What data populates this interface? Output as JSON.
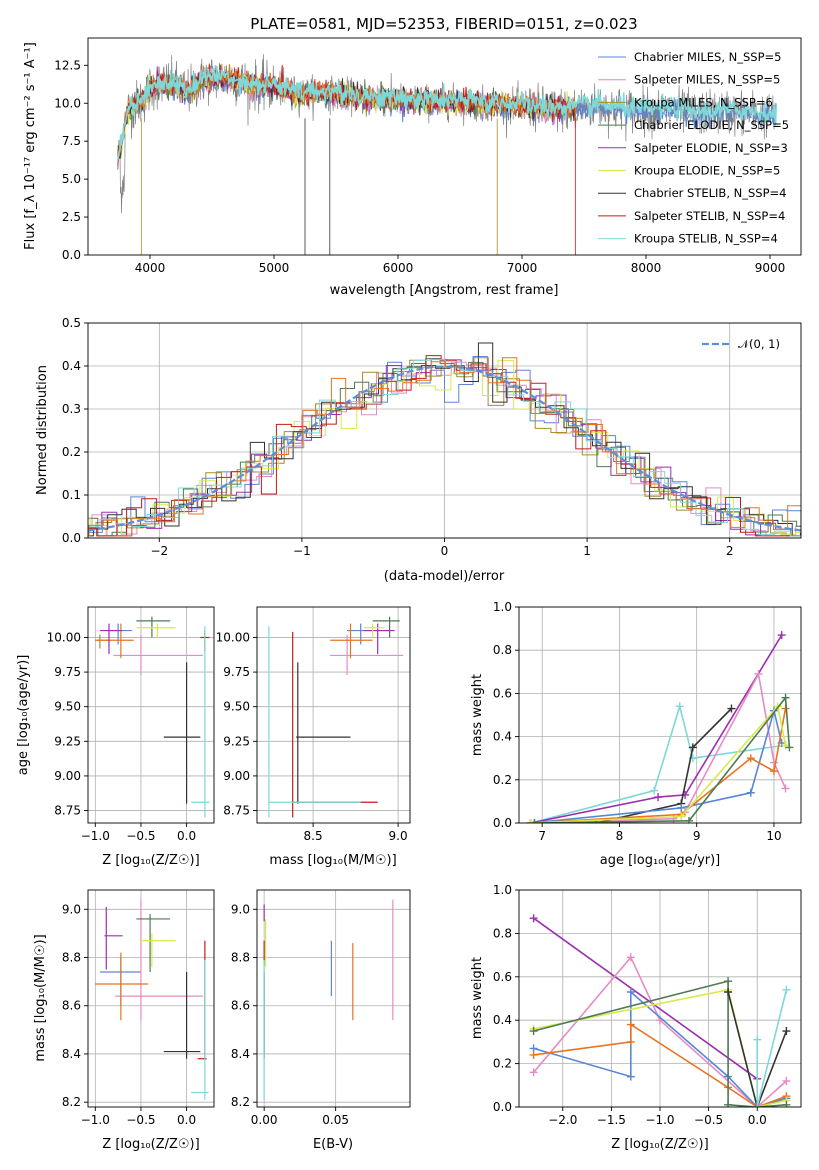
{
  "colors": {
    "chabrier_miles": "#5a86d6",
    "salpeter_miles": "#e88ac3",
    "kroupa_miles": "#a88b2a",
    "chabrier_elodie": "#4e7a52",
    "salpeter_elodie": "#9b2fb0",
    "kroupa_elodie": "#d8ea4b",
    "chabrier_stelib": "#333333",
    "salpeter_stelib": "#c81a1a",
    "kroupa_stelib": "#7fd8d8",
    "orange": "#e87422",
    "gauss": "#5b8fd9"
  },
  "chart_data": [
    {
      "id": "spectrum",
      "type": "line",
      "title": "PLATE=0581, MJD=52353, FIBERID=0151, z=0.023",
      "xlabel": "wavelength [Angstrom, rest frame]",
      "ylabel": "Flux [f_λ 10⁻¹⁷ erg cm⁻² s⁻¹ A⁻¹]",
      "xlim": [
        3500,
        9250
      ],
      "ylim": [
        0,
        14.3
      ],
      "xticks": [
        "4000",
        "5000",
        "6000",
        "7000",
        "8000",
        "9000"
      ],
      "yticks": [
        "0.0",
        "2.5",
        "5.0",
        "7.5",
        "10.0",
        "12.5"
      ],
      "legend_placement": "top-right",
      "legend": [
        "Chabrier MILES, N_SSP=5",
        "Salpeter MILES, N_SSP=5",
        "Kroupa MILES, N_SSP=6",
        "Chabrier ELODIE, N_SSP=5",
        "Salpeter ELODIE, N_SSP=3",
        "Kroupa ELODIE, N_SSP=5",
        "Chabrier STELIB, N_SSP=4",
        "Salpeter STELIB, N_SSP=4",
        "Kroupa STELIB, N_SSP=4"
      ],
      "model_shape": [
        [
          3750,
          6.5
        ],
        [
          3820,
          9.5
        ],
        [
          3900,
          10.0
        ],
        [
          3950,
          10.2
        ],
        [
          4000,
          11.0
        ],
        [
          4100,
          11.3
        ],
        [
          4200,
          11.2
        ],
        [
          4300,
          10.7
        ],
        [
          4400,
          11.4
        ],
        [
          4500,
          11.7
        ],
        [
          4600,
          11.6
        ],
        [
          4700,
          11.5
        ],
        [
          4800,
          11.2
        ],
        [
          4900,
          11.1
        ],
        [
          5000,
          11.1
        ],
        [
          5200,
          10.6
        ],
        [
          5400,
          10.7
        ],
        [
          5600,
          10.5
        ],
        [
          5800,
          10.3
        ],
        [
          6000,
          10.2
        ],
        [
          6200,
          10.1
        ],
        [
          6400,
          10.1
        ],
        [
          6600,
          10.0
        ],
        [
          6800,
          9.9
        ],
        [
          7000,
          9.8
        ],
        [
          7200,
          9.6
        ],
        [
          7400,
          9.6
        ],
        [
          7600,
          9.8
        ],
        [
          7800,
          9.6
        ],
        [
          8000,
          9.5
        ],
        [
          8200,
          9.6
        ],
        [
          8400,
          9.3
        ],
        [
          8600,
          9.4
        ],
        [
          8800,
          9.4
        ],
        [
          9000,
          9.2
        ]
      ],
      "grid": false
    },
    {
      "id": "residuals",
      "type": "line",
      "xlabel": "(data-model)/error",
      "ylabel": "Normed distribution",
      "xlim": [
        -2.5,
        2.5
      ],
      "ylim": [
        0,
        0.5
      ],
      "xticks": [
        "−2",
        "−1",
        "0",
        "1",
        "2"
      ],
      "yticks": [
        "0.0",
        "0.1",
        "0.2",
        "0.3",
        "0.4",
        "0.5"
      ],
      "legend": [
        "𝒩(0, 1)"
      ],
      "legend_placement": "top-right",
      "grid": true
    },
    {
      "id": "age_vs_Z",
      "type": "scatter",
      "xlabel": "Z [log₁₀(Z/Z☉)]",
      "ylabel": "age  [log₁₀(age/yr)]",
      "xlim": [
        -1.08,
        0.3
      ],
      "ylim": [
        8.66,
        10.22
      ],
      "xticks": [
        "−1.0",
        "−0.5",
        "0.0"
      ],
      "yticks": [
        "8.75",
        "9.00",
        "9.25",
        "9.50",
        "9.75",
        "10.00"
      ],
      "grid": true
    },
    {
      "id": "age_vs_mass",
      "type": "scatter",
      "xlabel": "mass [log₁₀(M/M☉)]",
      "ylabel": "",
      "xlim": [
        8.17,
        9.07
      ],
      "ylim": [
        8.66,
        10.22
      ],
      "xticks": [
        "8.5",
        "9.0"
      ],
      "yticks": [
        "8.75",
        "9.00",
        "9.25",
        "9.50",
        "9.75",
        "10.00"
      ],
      "grid": true
    },
    {
      "id": "weight_vs_age",
      "type": "line",
      "xlabel": "age  [log₁₀(age/yr)]",
      "ylabel": "mass weight",
      "xlim": [
        6.7,
        10.35
      ],
      "ylim": [
        0,
        1.0
      ],
      "xticks": [
        "7",
        "8",
        "9",
        "10"
      ],
      "yticks": [
        "0.0",
        "0.2",
        "0.4",
        "0.6",
        "0.8",
        "1.0"
      ],
      "grid": true,
      "series": [
        {
          "color": "kroupa_stelib",
          "x": [
            6.85,
            8.45,
            8.78,
            8.95,
            10.15
          ],
          "y": [
            0.0,
            0.15,
            0.54,
            0.3,
            0.36
          ]
        },
        {
          "color": "salpeter_elodie",
          "x": [
            6.85,
            8.5,
            8.85,
            10.1
          ],
          "y": [
            0.0,
            0.12,
            0.13,
            0.87
          ]
        },
        {
          "color": "salpeter_miles",
          "x": [
            6.9,
            8.7,
            8.85,
            9.8,
            10.0,
            10.15
          ],
          "y": [
            0.0,
            0.02,
            0.05,
            0.69,
            0.28,
            0.16
          ]
        },
        {
          "color": "chabrier_stelib",
          "x": [
            7.7,
            8.8,
            8.95,
            9.45
          ],
          "y": [
            0.0,
            0.09,
            0.35,
            0.53
          ]
        },
        {
          "color": "chabrier_miles",
          "x": [
            6.85,
            8.8,
            9.7,
            10.0,
            10.1
          ],
          "y": [
            0.0,
            0.07,
            0.14,
            0.52,
            0.37
          ]
        },
        {
          "color": "orange",
          "x": [
            6.85,
            8.8,
            9.7,
            10.0,
            10.15
          ],
          "y": [
            0.0,
            0.04,
            0.3,
            0.24,
            0.53
          ]
        },
        {
          "color": "kroupa_elodie",
          "x": [
            6.85,
            8.8,
            10.05,
            10.15
          ],
          "y": [
            0.0,
            0.03,
            0.54,
            0.36
          ]
        },
        {
          "color": "chabrier_elodie",
          "x": [
            6.9,
            8.9,
            10.15,
            10.2
          ],
          "y": [
            0.0,
            0.01,
            0.58,
            0.35
          ]
        }
      ]
    },
    {
      "id": "mass_vs_Z",
      "type": "scatter",
      "xlabel": "Z [log₁₀(Z/Z☉)]",
      "ylabel": "mass [log₁₀(M/M☉)]",
      "xlim": [
        -1.08,
        0.3
      ],
      "ylim": [
        8.18,
        9.08
      ],
      "xticks": [
        "−1.0",
        "−0.5",
        "0.0"
      ],
      "yticks": [
        "8.2",
        "8.4",
        "8.6",
        "8.8",
        "9.0"
      ],
      "grid": true
    },
    {
      "id": "mass_vs_EBV",
      "type": "scatter",
      "xlabel": "E(B-V)",
      "ylabel": "",
      "xlim": [
        -0.005,
        0.102
      ],
      "ylim": [
        8.18,
        9.08
      ],
      "xticks": [
        "0.00",
        "0.05"
      ],
      "yticks": [
        "8.2",
        "8.4",
        "8.6",
        "8.8",
        "9.0"
      ],
      "grid": true
    },
    {
      "id": "weight_vs_Z",
      "type": "line",
      "xlabel": "Z [log₁₀(Z/Z☉)]",
      "ylabel": "mass weight",
      "xlim": [
        -2.45,
        0.45
      ],
      "ylim": [
        0,
        1.0
      ],
      "xticks": [
        "−2.0",
        "−1.5",
        "−1.0",
        "−0.5",
        "0.0"
      ],
      "yticks": [
        "0.0",
        "0.2",
        "0.4",
        "0.6",
        "0.8",
        "1.0"
      ],
      "grid": true,
      "series": [
        {
          "color": "salpeter_elodie",
          "x": [
            -2.3,
            0.0
          ],
          "y": [
            0.87,
            0.13
          ]
        },
        {
          "color": "salpeter_miles",
          "x": [
            -2.3,
            -1.3,
            -1.0,
            0.0,
            0.3
          ],
          "y": [
            0.16,
            0.69,
            0.4,
            0.0,
            0.12
          ]
        },
        {
          "color": "chabrier_miles",
          "x": [
            -2.3,
            -1.3,
            -1.3,
            -0.3,
            0.0,
            0.3
          ],
          "y": [
            0.27,
            0.14,
            0.53,
            0.14,
            0.0,
            0.04
          ]
        },
        {
          "color": "orange",
          "x": [
            -2.3,
            -1.3,
            -1.3,
            -0.3,
            0.0,
            0.3
          ],
          "y": [
            0.24,
            0.3,
            0.38,
            0.09,
            0.0,
            0.05
          ]
        },
        {
          "color": "kroupa_elodie",
          "x": [
            -2.3,
            -0.3,
            0.0,
            0.3
          ],
          "y": [
            0.36,
            0.54,
            0.0,
            0.03
          ]
        },
        {
          "color": "chabrier_elodie",
          "x": [
            -2.3,
            -0.3,
            -0.3,
            0.0,
            0.3
          ],
          "y": [
            0.35,
            0.58,
            0.01,
            0.0,
            0.01
          ]
        },
        {
          "color": "chabrier_stelib",
          "x": [
            -0.3,
            0.0,
            0.3
          ],
          "y": [
            0.53,
            0.0,
            0.35
          ]
        },
        {
          "color": "kroupa_stelib",
          "x": [
            0.0,
            0.0,
            0.3
          ],
          "y": [
            0.31,
            0.0,
            0.54
          ]
        }
      ]
    }
  ]
}
